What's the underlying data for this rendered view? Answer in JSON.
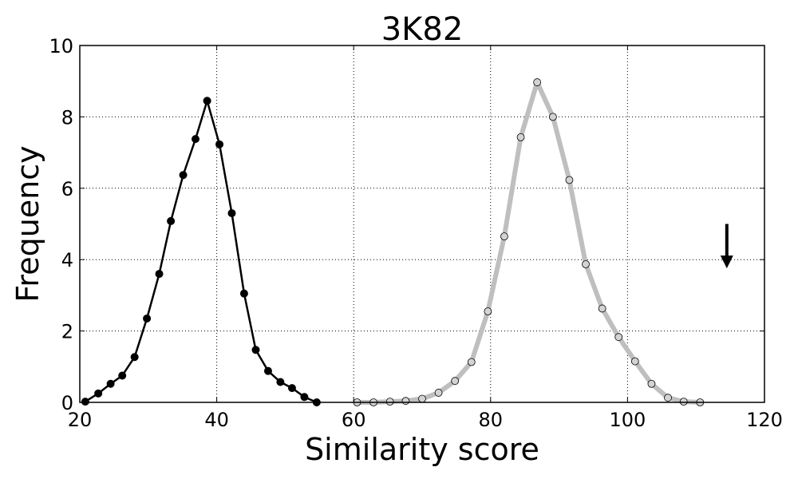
{
  "chart_data": {
    "type": "line",
    "title": "3K82",
    "xlabel": "Similarity score",
    "ylabel": "Frequency",
    "xlim": [
      20,
      120
    ],
    "ylim": [
      0,
      10
    ],
    "xticks": [
      "20",
      "40",
      "60",
      "80",
      "100",
      "120"
    ],
    "yticks": [
      "0",
      "2",
      "4",
      "6",
      "8",
      "10"
    ],
    "grid": true,
    "series": [
      {
        "color": "#000000",
        "marker_fill": "#000000",
        "x": [
          20.8,
          22.7,
          24.5,
          26.2,
          28.0,
          29.8,
          31.6,
          33.3,
          35.1,
          36.9,
          38.6,
          40.4,
          42.2,
          44.0,
          45.7,
          47.5,
          49.3,
          51.0,
          52.8,
          54.6
        ],
        "y": [
          0.02,
          0.25,
          0.52,
          0.75,
          1.27,
          2.35,
          3.6,
          5.08,
          6.37,
          7.38,
          8.45,
          7.23,
          5.3,
          3.05,
          1.47,
          0.88,
          0.57,
          0.4,
          0.15,
          0.0
        ]
      },
      {
        "color": "#bfbfbf",
        "marker_fill": "#d3d3d3",
        "x": [
          60.5,
          62.9,
          65.3,
          67.6,
          70.0,
          72.4,
          74.8,
          77.2,
          79.6,
          82.0,
          84.4,
          86.8,
          89.1,
          91.5,
          93.9,
          96.3,
          98.7,
          101.1,
          103.5,
          105.9,
          108.2,
          110.6
        ],
        "y": [
          0.0,
          0.0,
          0.02,
          0.04,
          0.1,
          0.27,
          0.6,
          1.13,
          2.55,
          4.65,
          7.43,
          8.97,
          8.0,
          6.23,
          3.87,
          2.63,
          1.83,
          1.15,
          0.52,
          0.13,
          0.02,
          0.0
        ]
      }
    ],
    "annotations": [
      {
        "type": "arrow",
        "direction": "down",
        "x": 114.5,
        "y_start": 5.0,
        "y_end": 3.8,
        "color": "#000000"
      }
    ]
  }
}
